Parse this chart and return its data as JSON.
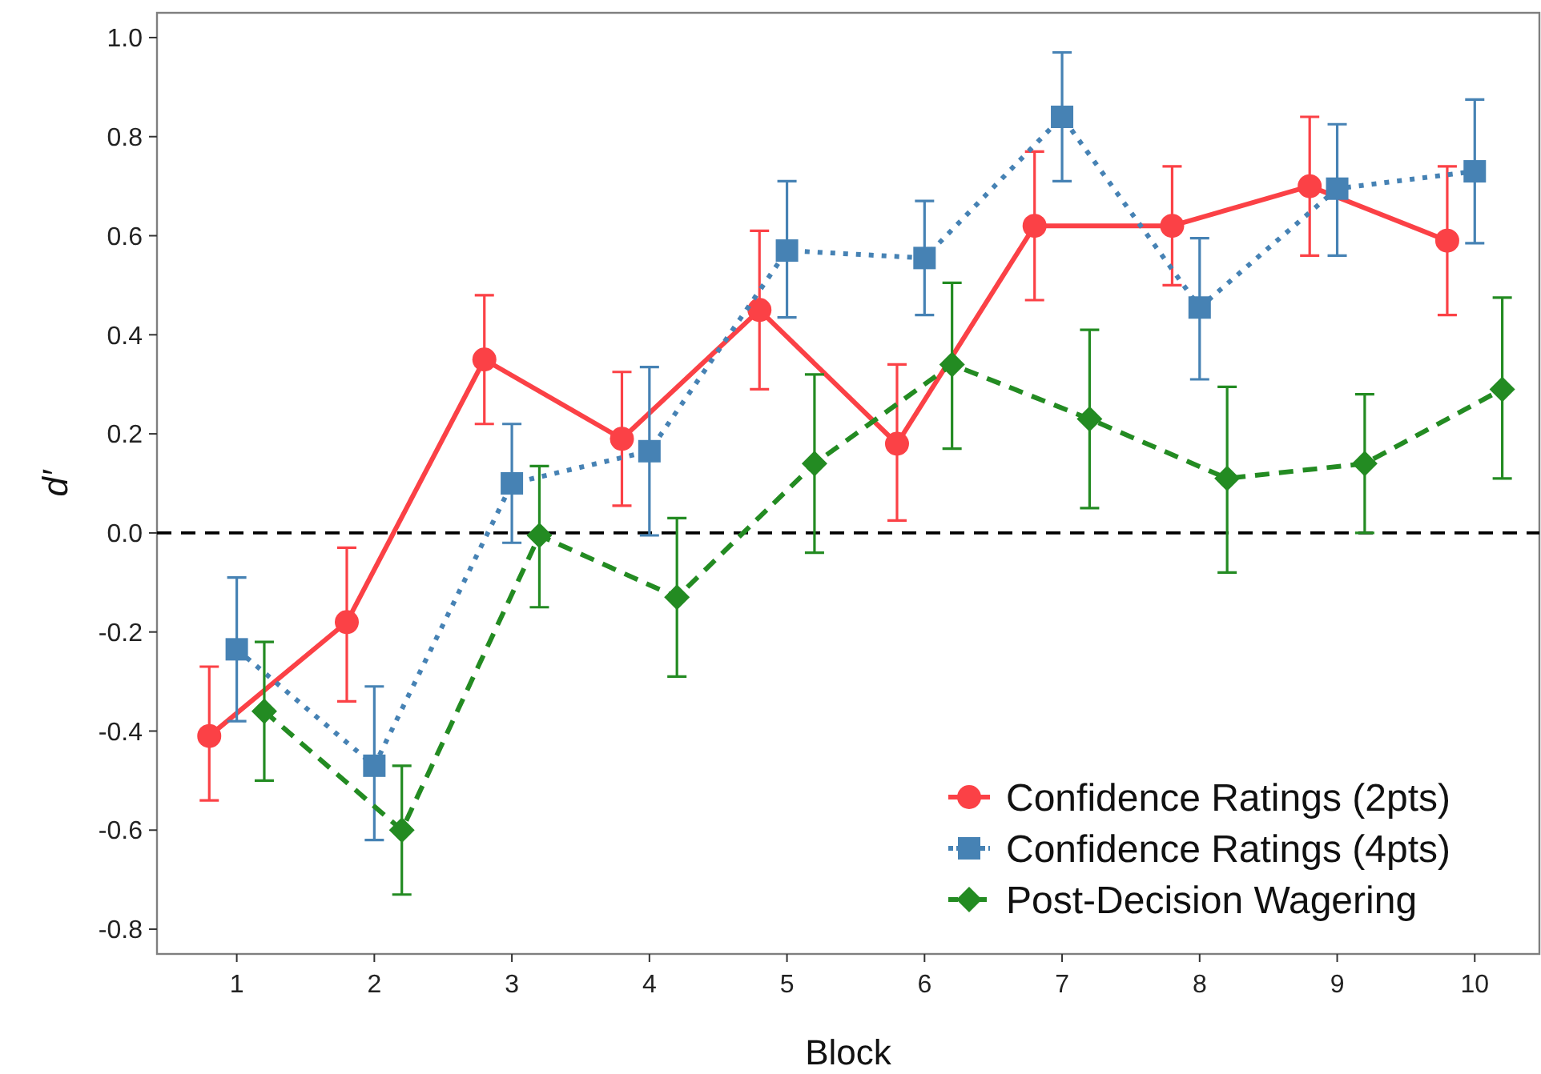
{
  "chart_data": {
    "type": "line",
    "xlabel": "Block",
    "ylabel": "d′",
    "xlim": [
      0.42,
      10.47
    ],
    "xticks": [
      1,
      2,
      3,
      4,
      5,
      6,
      7,
      8,
      9,
      10
    ],
    "ylim": [
      -0.85,
      1.05
    ],
    "yticks": [
      {
        "value": -0.8,
        "label": "-0.8"
      },
      {
        "value": -0.6,
        "label": "-0.6"
      },
      {
        "value": -0.4,
        "label": "-0.4"
      },
      {
        "value": -0.2,
        "label": "-0.2"
      },
      {
        "value": 0,
        "label": "0.0"
      },
      {
        "value": 0.2,
        "label": "0.2"
      },
      {
        "value": 0.4,
        "label": "0.4"
      },
      {
        "value": 0.6,
        "label": "0.6"
      },
      {
        "value": 0.8,
        "label": "0.8"
      },
      {
        "value": 1,
        "label": "1.0"
      }
    ],
    "grid": false,
    "legend": "bottom right",
    "ref_lines": [
      {
        "axis": "y",
        "value": 0,
        "color": "#000000",
        "line_style": "dashed"
      }
    ],
    "series": [
      {
        "name": "Confidence Ratings (2pts)",
        "color": "#fb4146",
        "marker": "circle",
        "line_style": "solid",
        "x": [
          0.8,
          1.8,
          2.8,
          3.8,
          4.8,
          5.8,
          6.8,
          7.8,
          8.8,
          9.8
        ],
        "values": [
          -0.41,
          -0.18,
          0.35,
          0.19,
          0.45,
          0.18,
          0.62,
          0.62,
          0.7,
          0.59
        ],
        "errors": [
          [
            -0.54,
            -0.27
          ],
          [
            -0.34,
            -0.03
          ],
          [
            0.22,
            0.48
          ],
          [
            0.055,
            0.325
          ],
          [
            0.29,
            0.61
          ],
          [
            0.025,
            0.34
          ],
          [
            0.47,
            0.77
          ],
          [
            0.5,
            0.74
          ],
          [
            0.56,
            0.84
          ],
          [
            0.44,
            0.74
          ]
        ]
      },
      {
        "name": "Confidence Ratings (4pts)",
        "color": "#4682b4",
        "marker": "square",
        "line_style": "dotted",
        "x": [
          1,
          2,
          3,
          4,
          5,
          6,
          7,
          8,
          9,
          10
        ],
        "values": [
          -0.235,
          -0.47,
          0.1,
          0.165,
          0.57,
          0.555,
          0.84,
          0.455,
          0.695,
          0.73
        ],
        "errors": [
          [
            -0.38,
            -0.09
          ],
          [
            -0.62,
            -0.31
          ],
          [
            -0.02,
            0.22
          ],
          [
            -0.005,
            0.335
          ],
          [
            0.435,
            0.71
          ],
          [
            0.44,
            0.67
          ],
          [
            0.71,
            0.97
          ],
          [
            0.31,
            0.595
          ],
          [
            0.56,
            0.825
          ],
          [
            0.585,
            0.875
          ]
        ]
      },
      {
        "name": "Post-Decision Wagering",
        "color": "#238b22",
        "marker": "diamond",
        "line_style": "dashed",
        "x": [
          1.2,
          2.2,
          3.2,
          4.2,
          5.2,
          6.2,
          7.2,
          8.2,
          9.2,
          10.2
        ],
        "values": [
          -0.36,
          -0.6,
          -0.005,
          -0.13,
          0.14,
          0.34,
          0.23,
          0.11,
          0.14,
          0.29
        ],
        "errors": [
          [
            -0.5,
            -0.22
          ],
          [
            -0.73,
            -0.47
          ],
          [
            -0.15,
            0.135
          ],
          [
            -0.29,
            0.03
          ],
          [
            -0.04,
            0.32
          ],
          [
            0.17,
            0.505
          ],
          [
            0.05,
            0.41
          ],
          [
            -0.08,
            0.295
          ],
          [
            0.0,
            0.28
          ],
          [
            0.11,
            0.475
          ]
        ]
      }
    ]
  }
}
